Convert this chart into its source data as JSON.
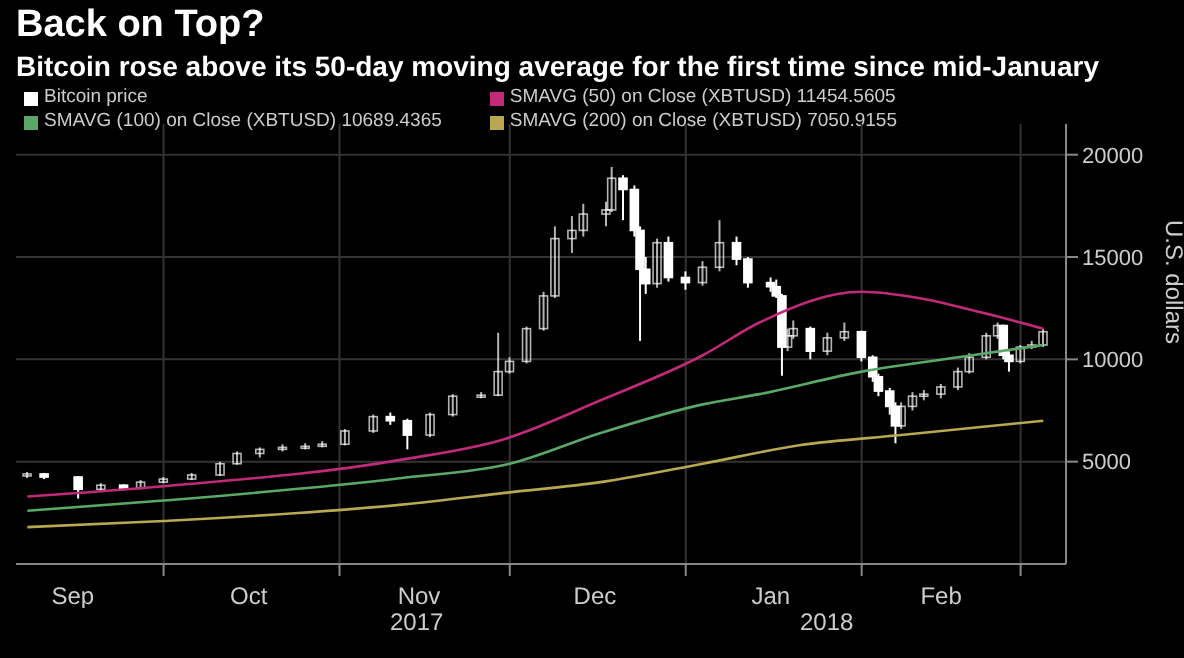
{
  "chart_data": {
    "type": "candlestick",
    "title": "Back on Top?",
    "subtitle": "Bitcoin rose above its 50-day moving average for the first time since mid-January",
    "ylabel": "U.S. dollars",
    "legend": "top left",
    "grid": true,
    "xlim": [
      "2017-09-05",
      "2018-03-09"
    ],
    "xticks": [
      {
        "value": "2017-09-15",
        "label": "Sep"
      },
      {
        "value": "2017-10-01",
        "label": null
      },
      {
        "value": "2017-10-16",
        "label": "Oct"
      },
      {
        "value": "2017-11-01",
        "label": null
      },
      {
        "value": "2017-11-15",
        "label": "Nov"
      },
      {
        "value": "2017-12-01",
        "label": null
      },
      {
        "value": "2017-12-16",
        "label": "Dec"
      },
      {
        "value": "2018-01-01",
        "label": null
      },
      {
        "value": "2018-01-16",
        "label": "Jan"
      },
      {
        "value": "2018-02-01",
        "label": null
      },
      {
        "value": "2018-02-15",
        "label": "Feb"
      },
      {
        "value": "2018-03-01",
        "label": null
      }
    ],
    "ylim": [
      0,
      21500
    ],
    "yticks": [
      5000,
      10000,
      15000,
      20000
    ],
    "annotations": [
      "2017",
      "2018"
    ],
    "series": [
      {
        "name": "Bitcoin price",
        "color": "#ffffff",
        "x": [
          "2017-09-07",
          "2017-09-10",
          "2017-09-16",
          "2017-09-20",
          "2017-09-24",
          "2017-09-27",
          "2017-10-01",
          "2017-10-06",
          "2017-10-11",
          "2017-10-14",
          "2017-10-18",
          "2017-10-22",
          "2017-10-26",
          "2017-10-29",
          "2017-11-02",
          "2017-11-07",
          "2017-11-10",
          "2017-11-13",
          "2017-11-17",
          "2017-11-21",
          "2017-11-26",
          "2017-11-29",
          "2017-12-01",
          "2017-12-04",
          "2017-12-07",
          "2017-12-09",
          "2017-12-12",
          "2017-12-14",
          "2017-12-18",
          "2017-12-19",
          "2017-12-21",
          "2017-12-23",
          "2017-12-24",
          "2017-12-25",
          "2017-12-27",
          "2017-12-29",
          "2018-01-01",
          "2018-01-04",
          "2018-01-07",
          "2018-01-10",
          "2018-01-12",
          "2018-01-16",
          "2018-01-17",
          "2018-01-18",
          "2018-01-19",
          "2018-01-20",
          "2018-01-23",
          "2018-01-26",
          "2018-01-29",
          "2018-02-01",
          "2018-02-03",
          "2018-02-04",
          "2018-02-06",
          "2018-02-07",
          "2018-02-08",
          "2018-02-10",
          "2018-02-12",
          "2018-02-15",
          "2018-02-18",
          "2018-02-20",
          "2018-02-23",
          "2018-02-25",
          "2018-02-26",
          "2018-02-27",
          "2018-03-01",
          "2018-03-03",
          "2018-03-05"
        ],
        "ohlc": [
          [
            4300,
            4500,
            4200,
            4400
          ],
          [
            4400,
            4450,
            4150,
            4250
          ],
          [
            4250,
            4300,
            3200,
            3650
          ],
          [
            3650,
            3950,
            3600,
            3850
          ],
          [
            3850,
            3900,
            3600,
            3700
          ],
          [
            3700,
            4100,
            3650,
            4000
          ],
          [
            4000,
            4250,
            3950,
            4150
          ],
          [
            4150,
            4450,
            4100,
            4350
          ],
          [
            4350,
            5000,
            4300,
            4900
          ],
          [
            4900,
            5500,
            4850,
            5400
          ],
          [
            5400,
            5700,
            5200,
            5600
          ],
          [
            5600,
            5850,
            5500,
            5700
          ],
          [
            5700,
            5900,
            5600,
            5750
          ],
          [
            5750,
            6000,
            5700,
            5850
          ],
          [
            5850,
            6600,
            5800,
            6500
          ],
          [
            6500,
            7300,
            6400,
            7200
          ],
          [
            7200,
            7400,
            6800,
            7000
          ],
          [
            7000,
            7100,
            5600,
            6300
          ],
          [
            6300,
            7400,
            6200,
            7300
          ],
          [
            7300,
            8300,
            7200,
            8200
          ],
          [
            8200,
            8400,
            8100,
            8250
          ],
          [
            8250,
            11300,
            8200,
            9400
          ],
          [
            9400,
            10100,
            9300,
            9900
          ],
          [
            9900,
            11600,
            9800,
            11500
          ],
          [
            11500,
            13300,
            11400,
            13100
          ],
          [
            13100,
            16500,
            13000,
            15900
          ],
          [
            15900,
            17000,
            15200,
            16300
          ],
          [
            16300,
            17600,
            16000,
            17100
          ],
          [
            17100,
            17700,
            16500,
            17300
          ],
          [
            17300,
            19400,
            17200,
            18850
          ],
          [
            18850,
            19000,
            16800,
            18300
          ],
          [
            18300,
            18500,
            16000,
            16300
          ],
          [
            16300,
            16500,
            10900,
            14400
          ],
          [
            14400,
            15000,
            13200,
            13700
          ],
          [
            13700,
            15900,
            13500,
            15700
          ],
          [
            15700,
            16000,
            13800,
            14000
          ],
          [
            14000,
            14300,
            13400,
            13750
          ],
          [
            13750,
            14800,
            13600,
            14500
          ],
          [
            14500,
            16800,
            14300,
            15700
          ],
          [
            15700,
            16000,
            14600,
            14900
          ],
          [
            14900,
            15000,
            13500,
            13750
          ],
          [
            13750,
            14000,
            13300,
            13550
          ],
          [
            13550,
            13900,
            13000,
            13100
          ],
          [
            13100,
            13200,
            9200,
            10600
          ],
          [
            10600,
            11500,
            10400,
            11150
          ],
          [
            11150,
            11900,
            11000,
            11500
          ],
          [
            11500,
            11600,
            10000,
            10400
          ],
          [
            10400,
            11300,
            10200,
            11050
          ],
          [
            11050,
            11800,
            10900,
            11350
          ],
          [
            11350,
            11400,
            9900,
            10100
          ],
          [
            10100,
            10200,
            8900,
            9150
          ],
          [
            9150,
            9300,
            8200,
            8450
          ],
          [
            8450,
            8600,
            7300,
            7700
          ],
          [
            7700,
            7900,
            5900,
            6750
          ],
          [
            6750,
            7900,
            6600,
            7700
          ],
          [
            7700,
            8400,
            7500,
            8200
          ],
          [
            8200,
            8500,
            8000,
            8300
          ],
          [
            8300,
            8800,
            8100,
            8650
          ],
          [
            8650,
            9600,
            8500,
            9400
          ],
          [
            9400,
            10300,
            9300,
            10100
          ],
          [
            10100,
            11300,
            10000,
            11150
          ],
          [
            11150,
            11800,
            11000,
            11650
          ],
          [
            11650,
            11700,
            10000,
            10200
          ],
          [
            10200,
            10400,
            9400,
            9900
          ],
          [
            9900,
            10700,
            9800,
            10600
          ],
          [
            10600,
            10900,
            10500,
            10700
          ],
          [
            10700,
            11500,
            10600,
            11350
          ]
        ]
      },
      {
        "name": "SMAVG (50) on Close (XBTUSD) 11454.5605",
        "type": "line",
        "color": "#c02a78",
        "x": [
          "2017-09-07",
          "2017-10-01",
          "2017-11-12",
          "2017-11-30",
          "2017-12-17",
          "2018-01-04",
          "2018-01-14",
          "2018-02-01",
          "2018-02-11",
          "2018-02-22",
          "2018-03-05"
        ],
        "values": [
          3300,
          3800,
          5100,
          6100,
          8000,
          10200,
          11800,
          13300,
          13000,
          12300,
          11500
        ]
      },
      {
        "name": "SMAVG (100) on Close (XBTUSD) 10689.4365",
        "type": "line",
        "color": "#5aa868",
        "x": [
          "2017-09-07",
          "2017-10-01",
          "2017-11-12",
          "2017-12-01",
          "2017-12-17",
          "2018-01-04",
          "2018-01-14",
          "2018-02-01",
          "2018-02-18",
          "2018-03-05"
        ],
        "values": [
          2600,
          3100,
          4200,
          4900,
          6400,
          7800,
          8300,
          9400,
          10100,
          10700
        ]
      },
      {
        "name": "SMAVG (200) on Close (XBTUSD) 7050.9155",
        "type": "line",
        "color": "#b8a850",
        "x": [
          "2017-09-07",
          "2017-10-01",
          "2017-11-12",
          "2017-12-01",
          "2017-12-17",
          "2018-01-04",
          "2018-01-21",
          "2018-02-08",
          "2018-03-05"
        ],
        "values": [
          1800,
          2100,
          2900,
          3500,
          4000,
          4900,
          5800,
          6300,
          7000
        ]
      }
    ]
  }
}
